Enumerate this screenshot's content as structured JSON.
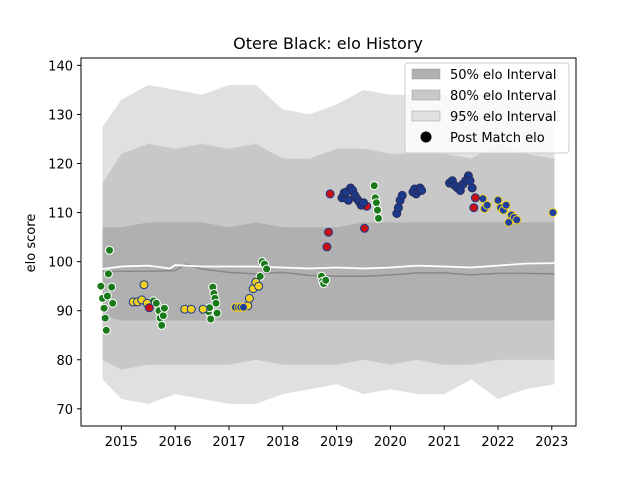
{
  "chart_data": {
    "type": "scatter",
    "title": "Otere Black: elo History",
    "xlabel": "",
    "ylabel": "elo score",
    "xlim": [
      2014.25,
      2023.45
    ],
    "ylim": [
      66.5,
      141.5
    ],
    "xticks": [
      2015,
      2016,
      2017,
      2018,
      2019,
      2020,
      2021,
      2022,
      2023
    ],
    "yticks": [
      70,
      80,
      90,
      100,
      110,
      120,
      130,
      140
    ],
    "legend_position": "top-right",
    "legend": [
      {
        "label": "50% elo Interval",
        "kind": "band",
        "color": "#b0b0b0"
      },
      {
        "label": "80% elo Interval",
        "kind": "band",
        "color": "#c8c8c8"
      },
      {
        "label": "95% elo Interval",
        "kind": "band",
        "color": "#e0e0e0"
      },
      {
        "label": "Post Match elo",
        "kind": "marker",
        "color": "#000000"
      }
    ],
    "bands": {
      "x": [
        2014.65,
        2015.0,
        2015.5,
        2016.0,
        2016.5,
        2017.0,
        2017.5,
        2018.0,
        2018.5,
        2019.0,
        2019.5,
        2020.0,
        2020.5,
        2021.0,
        2021.5,
        2022.0,
        2022.5,
        2023.05
      ],
      "p95_hi": [
        127.5,
        133,
        136,
        135,
        134,
        136,
        136,
        131,
        130,
        132,
        135,
        134,
        134,
        134,
        133,
        135,
        133,
        133
      ],
      "p95_lo": [
        76,
        72,
        71,
        73,
        72,
        71,
        71,
        73,
        74,
        75,
        73,
        74,
        73,
        73,
        76,
        72,
        74,
        75
      ],
      "p80_hi": [
        116,
        122,
        124,
        123,
        124,
        123,
        124,
        121,
        121,
        123,
        123,
        122,
        122,
        122,
        121,
        124,
        122,
        121
      ],
      "p80_lo": [
        80,
        78,
        79,
        79,
        79,
        79,
        80,
        79,
        79,
        79,
        80,
        79,
        80,
        79,
        79,
        80,
        80,
        80
      ],
      "p50_hi": [
        107,
        107,
        108,
        108,
        108,
        107,
        108,
        107,
        107,
        107,
        108,
        108,
        108,
        108,
        108,
        108,
        108,
        108
      ],
      "p50_lo": [
        89,
        88,
        88,
        88,
        88,
        88,
        88,
        88,
        88,
        88,
        88,
        88,
        88,
        88,
        88,
        88,
        88,
        88
      ]
    },
    "mean_line": {
      "color": "#ffffff",
      "x": [
        2014.65,
        2015.0,
        2015.5,
        2015.9,
        2016.0,
        2016.5,
        2016.9,
        2017.5,
        2018.0,
        2018.5,
        2019.0,
        2019.5,
        2020.0,
        2020.5,
        2021.0,
        2021.5,
        2022.0,
        2022.5,
        2023.05
      ],
      "y": [
        98.5,
        99.0,
        99.2,
        98.6,
        99.3,
        99.0,
        99.0,
        99.0,
        98.8,
        98.6,
        98.8,
        98.6,
        98.8,
        99.2,
        99.0,
        98.8,
        99.2,
        99.6,
        99.7
      ]
    },
    "median_line": {
      "color": "#888888",
      "x": [
        2014.65,
        2015.0,
        2015.5,
        2016.0,
        2016.2,
        2016.5,
        2017.0,
        2017.5,
        2018.0,
        2018.5,
        2019.0,
        2019.5,
        2020.0,
        2020.5,
        2021.0,
        2021.5,
        2022.0,
        2022.5,
        2023.05
      ],
      "y": [
        98.0,
        98.0,
        98.0,
        98.2,
        99.5,
        98.5,
        97.8,
        97.5,
        97.8,
        97.2,
        97.0,
        97.0,
        97.3,
        97.7,
        97.7,
        97.3,
        97.6,
        97.6,
        97.5
      ]
    },
    "series": [
      {
        "fill": "#1a7a1a",
        "edge": "#ffffff",
        "points": [
          [
            2014.62,
            95
          ],
          [
            2014.65,
            92.5
          ],
          [
            2014.68,
            90.5
          ],
          [
            2014.7,
            88.5
          ],
          [
            2014.72,
            86
          ],
          [
            2014.74,
            93
          ],
          [
            2014.76,
            97.5
          ],
          [
            2014.78,
            102.3
          ],
          [
            2014.82,
            94.8
          ],
          [
            2014.84,
            91.5
          ],
          [
            2015.6,
            92
          ],
          [
            2015.65,
            91.5
          ],
          [
            2015.7,
            90
          ],
          [
            2015.72,
            88.5
          ],
          [
            2015.75,
            87
          ],
          [
            2015.78,
            89
          ],
          [
            2015.8,
            90.5
          ],
          [
            2016.6,
            90.4
          ],
          [
            2016.62,
            89.8
          ],
          [
            2016.64,
            90.6
          ],
          [
            2016.66,
            88.3
          ],
          [
            2016.7,
            94.8
          ],
          [
            2016.72,
            93.5
          ],
          [
            2016.74,
            92.5
          ],
          [
            2016.76,
            91.5
          ],
          [
            2016.78,
            89.5
          ],
          [
            2017.52,
            95
          ],
          [
            2017.58,
            97
          ],
          [
            2017.62,
            100
          ],
          [
            2017.66,
            99.5
          ],
          [
            2017.7,
            98.5
          ],
          [
            2018.72,
            97
          ],
          [
            2018.74,
            96
          ],
          [
            2018.76,
            95.5
          ],
          [
            2018.8,
            96.2
          ],
          [
            2019.7,
            115.5
          ],
          [
            2019.72,
            113
          ],
          [
            2019.74,
            112
          ],
          [
            2019.76,
            110.5
          ],
          [
            2019.78,
            108.8
          ]
        ]
      },
      {
        "fill": "#f0d020",
        "edge": "#1a3a8c",
        "points": [
          [
            2015.22,
            91.8
          ],
          [
            2015.3,
            91.8
          ],
          [
            2015.38,
            92.2
          ],
          [
            2015.42,
            95.3
          ],
          [
            2015.48,
            91.5
          ],
          [
            2016.18,
            90.3
          ],
          [
            2016.3,
            90.3
          ],
          [
            2016.52,
            90.3
          ],
          [
            2017.35,
            91
          ],
          [
            2017.38,
            92.5
          ],
          [
            2017.45,
            94.5
          ],
          [
            2017.5,
            95.8
          ],
          [
            2017.55,
            95
          ]
        ]
      },
      {
        "fill": "#2040a0",
        "edge": "#f0d020",
        "points": [
          [
            2017.12,
            90.7
          ],
          [
            2017.18,
            90.7
          ],
          [
            2017.22,
            90.7
          ],
          [
            2017.27,
            90.7
          ],
          [
            2021.72,
            112.8
          ],
          [
            2021.75,
            110.8
          ],
          [
            2021.8,
            111.5
          ],
          [
            2022.0,
            112.5
          ],
          [
            2022.05,
            111
          ],
          [
            2022.1,
            110.5
          ],
          [
            2022.15,
            111.5
          ],
          [
            2022.2,
            108
          ],
          [
            2022.25,
            109.5
          ],
          [
            2022.3,
            109
          ],
          [
            2022.35,
            108.5
          ],
          [
            2023.02,
            110
          ]
        ]
      },
      {
        "fill": "#cc1010",
        "edge": "#1a3a8c",
        "points": [
          [
            2015.52,
            90.6
          ],
          [
            2018.82,
            103
          ],
          [
            2018.85,
            106
          ],
          [
            2018.88,
            113.8
          ],
          [
            2019.52,
            106.8
          ],
          [
            2019.56,
            111.3
          ],
          [
            2021.55,
            111
          ],
          [
            2021.58,
            113
          ]
        ]
      },
      {
        "fill": "#1a3a8c",
        "edge": "#2a2a5a",
        "points": [
          [
            2019.1,
            113
          ],
          [
            2019.14,
            114
          ],
          [
            2019.18,
            114.2
          ],
          [
            2019.22,
            112.5
          ],
          [
            2019.26,
            115
          ],
          [
            2019.3,
            114.5
          ],
          [
            2019.34,
            113.5
          ],
          [
            2019.38,
            112.8
          ],
          [
            2019.42,
            112.2
          ],
          [
            2019.46,
            111.5
          ],
          [
            2019.5,
            112
          ],
          [
            2020.12,
            109.8
          ],
          [
            2020.15,
            111
          ],
          [
            2020.18,
            112.5
          ],
          [
            2020.22,
            113.5
          ],
          [
            2020.42,
            114.2
          ],
          [
            2020.45,
            114.8
          ],
          [
            2020.48,
            113.8
          ],
          [
            2020.52,
            114.5
          ],
          [
            2020.55,
            115
          ],
          [
            2020.58,
            114.5
          ],
          [
            2021.1,
            116
          ],
          [
            2021.15,
            116.5
          ],
          [
            2021.2,
            115.5
          ],
          [
            2021.25,
            115
          ],
          [
            2021.3,
            114.5
          ],
          [
            2021.35,
            115.8
          ],
          [
            2021.4,
            116.5
          ],
          [
            2021.45,
            117.5
          ],
          [
            2021.48,
            116.5
          ],
          [
            2021.52,
            115
          ]
        ]
      }
    ]
  }
}
